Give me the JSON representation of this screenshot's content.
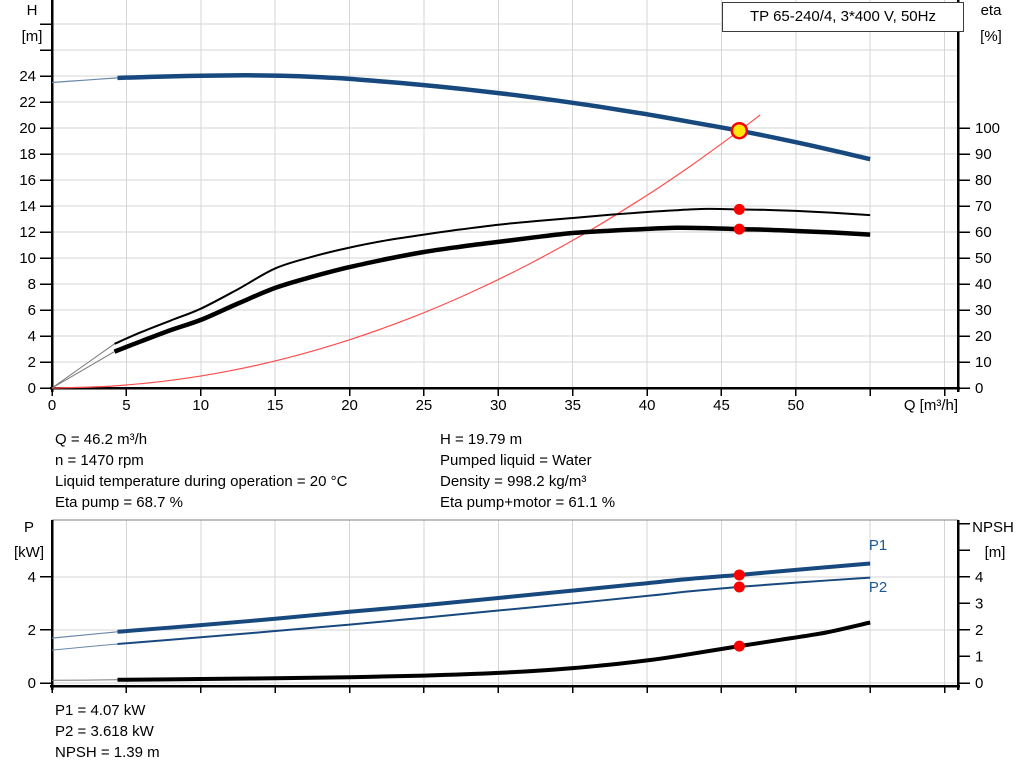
{
  "title_box": "TP 65-240/4, 3*400 V, 50Hz",
  "colors": {
    "curve_blue": "#17497E",
    "leadin_blue": "#6A87AB",
    "curve_black": "#000000",
    "leadin_gray": "#777777",
    "system_red": "#FF4D4D",
    "marker_red": "#FF0000",
    "duty_yellow": "#FFE80A",
    "grid": "#D5D5D5",
    "axis": "#000000",
    "label_blue": "#1B5899"
  },
  "axis_labels": {
    "h": "H",
    "h_unit": "[m]",
    "eta": "eta",
    "eta_unit": "[%]",
    "q": "Q [m³/h]",
    "p": "P",
    "p_unit": "[kW]",
    "npsh": "NPSH",
    "npsh_unit": "[m]"
  },
  "info_top_left": [
    "Q = 46.2 m³/h",
    "n = 1470 rpm",
    "Liquid temperature during operation = 20 °C",
    "Eta pump = 68.7 %"
  ],
  "info_top_right": [
    "H = 19.79 m",
    "Pumped liquid = Water",
    "Density = 998.2 kg/m³",
    "Eta pump+motor = 61.1 %"
  ],
  "info_bottom": [
    "P1 = 4.07 kW",
    "P2 = 3.618 kW",
    "NPSH = 1.39 m"
  ],
  "chart_data": [
    {
      "type": "line",
      "title": "TP 65-240/4, 3*400 V, 50Hz",
      "x": {
        "label": "Q [m³/h]",
        "ticks": [
          0,
          5,
          10,
          15,
          20,
          25,
          30,
          35,
          40,
          45,
          50
        ],
        "unlabeled_ticks": [
          55,
          60
        ],
        "range": [
          0,
          60.9
        ],
        "grid": true
      },
      "y_left": {
        "label": "H [m]",
        "ticks": [
          0,
          2,
          4,
          6,
          8,
          10,
          12,
          14,
          16,
          18,
          20,
          22,
          24
        ],
        "unlabeled_ticks": [
          26,
          28
        ],
        "range": [
          0,
          29.8
        ]
      },
      "y_right": {
        "label": "eta [%]",
        "ticks": [
          0,
          10,
          20,
          30,
          40,
          50,
          60,
          70,
          80,
          90,
          100
        ],
        "unlabeled_ticks": [],
        "range": [
          0,
          149
        ]
      },
      "series": [
        {
          "name": "head-curve-leadin",
          "axis": "left",
          "color": "#6A87AB",
          "width": 1.2,
          "points": [
            [
              0,
              23.5
            ],
            [
              2.2,
              23.68
            ],
            [
              4.4,
              23.85
            ]
          ]
        },
        {
          "name": "head-curve",
          "axis": "left",
          "color": "#17497E",
          "width": 4.5,
          "points": [
            [
              4.4,
              23.85
            ],
            [
              7,
              23.95
            ],
            [
              10,
              24.02
            ],
            [
              13,
              24.05
            ],
            [
              16,
              24.0
            ],
            [
              19,
              23.85
            ],
            [
              22,
              23.6
            ],
            [
              25,
              23.3
            ],
            [
              28,
              22.95
            ],
            [
              31,
              22.55
            ],
            [
              34,
              22.1
            ],
            [
              37,
              21.6
            ],
            [
              40,
              21.05
            ],
            [
              43,
              20.45
            ],
            [
              46.2,
              19.79
            ],
            [
              49,
              19.15
            ],
            [
              52,
              18.4
            ],
            [
              55,
              17.6
            ]
          ]
        },
        {
          "name": "system-curve",
          "axis": "left",
          "color": "#FF4D4D",
          "width": 1.2,
          "points": [
            [
              0,
              0
            ],
            [
              4,
              0.15
            ],
            [
              8,
              0.59
            ],
            [
              12,
              1.33
            ],
            [
              16,
              2.37
            ],
            [
              20,
              3.71
            ],
            [
              24,
              5.34
            ],
            [
              28,
              7.27
            ],
            [
              32,
              9.49
            ],
            [
              36,
              12.01
            ],
            [
              40,
              14.83
            ],
            [
              43,
              17.14
            ],
            [
              46.2,
              19.79
            ],
            [
              47.6,
              21.0
            ]
          ]
        },
        {
          "name": "eta-pump-curve-leadin",
          "axis": "right",
          "color": "#777777",
          "width": 1,
          "points": [
            [
              0,
              0
            ],
            [
              4.2,
              17
            ]
          ]
        },
        {
          "name": "eta-pump-curve",
          "axis": "right",
          "color": "#000000",
          "width": 2,
          "points": [
            [
              4.2,
              17
            ],
            [
              6,
              21.5
            ],
            [
              8,
              26
            ],
            [
              10,
              30.5
            ],
            [
              12.5,
              38
            ],
            [
              15,
              46
            ],
            [
              17.5,
              50.5
            ],
            [
              20,
              54
            ],
            [
              22.5,
              56.8
            ],
            [
              25,
              59
            ],
            [
              27.5,
              61
            ],
            [
              30,
              62.8
            ],
            [
              32.5,
              64.2
            ],
            [
              35,
              65.4
            ],
            [
              37.5,
              66.6
            ],
            [
              40,
              67.7
            ],
            [
              42,
              68.4
            ],
            [
              44,
              68.9
            ],
            [
              46.2,
              68.7
            ],
            [
              48,
              68.5
            ],
            [
              50,
              68.1
            ],
            [
              52.5,
              67.4
            ],
            [
              55,
              66.5
            ]
          ]
        },
        {
          "name": "eta-pump-motor-curve-leadin",
          "axis": "right",
          "color": "#777777",
          "width": 1,
          "points": [
            [
              0,
              0
            ],
            [
              4.2,
              14
            ]
          ]
        },
        {
          "name": "eta-pump-motor-curve",
          "axis": "right",
          "color": "#000000",
          "width": 4.5,
          "points": [
            [
              4.2,
              14
            ],
            [
              6,
              18
            ],
            [
              8,
              22.3
            ],
            [
              10,
              26.2
            ],
            [
              12.5,
              32.5
            ],
            [
              15,
              38.5
            ],
            [
              17.5,
              42.8
            ],
            [
              20,
              46.5
            ],
            [
              22.5,
              49.6
            ],
            [
              25,
              52.3
            ],
            [
              27.5,
              54.4
            ],
            [
              30,
              56.2
            ],
            [
              32.5,
              58
            ],
            [
              35,
              59.6
            ],
            [
              37.5,
              60.5
            ],
            [
              40,
              61.2
            ],
            [
              42,
              61.6
            ],
            [
              44,
              61.5
            ],
            [
              46.2,
              61.1
            ],
            [
              48,
              60.9
            ],
            [
              50,
              60.4
            ],
            [
              52.5,
              59.8
            ],
            [
              55,
              59
            ]
          ]
        }
      ],
      "markers": [
        {
          "name": "duty-point-marker",
          "axis": "left",
          "x": 46.2,
          "y": 19.79,
          "r": 7.5,
          "fill": "#FFE80A",
          "stroke": "#FF0000",
          "stroke_width": 2.5
        },
        {
          "name": "eta-pump-point",
          "axis": "right",
          "x": 46.2,
          "y": 68.7,
          "r": 5.5,
          "fill": "#FF0000"
        },
        {
          "name": "eta-pump-motor-point",
          "axis": "right",
          "x": 46.2,
          "y": 61.1,
          "r": 5.5,
          "fill": "#FF0000"
        }
      ]
    },
    {
      "type": "line",
      "x": {
        "label": "",
        "ticks": [],
        "unlabeled_ticks": [
          0,
          5,
          10,
          15,
          20,
          25,
          30,
          35,
          40,
          45,
          50,
          55,
          60
        ],
        "range": [
          0,
          60.9
        ],
        "grid": true
      },
      "y_left": {
        "label": "P [kW]",
        "ticks": [
          0,
          2,
          4
        ],
        "unlabeled_ticks": [],
        "range": [
          0,
          6.2
        ]
      },
      "y_right": {
        "label": "NPSH [m]",
        "ticks": [
          0,
          1,
          2,
          3,
          4
        ],
        "unlabeled_ticks": [
          5,
          6
        ],
        "range": [
          0,
          6.2
        ]
      },
      "legend": {
        "p1": "P1",
        "p2": "P2"
      },
      "series": [
        {
          "name": "p1-curve-leadin",
          "axis": "left",
          "color": "#6A87AB",
          "width": 1.2,
          "points": [
            [
              0,
              1.69
            ],
            [
              4.4,
              1.93
            ]
          ]
        },
        {
          "name": "p1-curve",
          "axis": "left",
          "color": "#17497E",
          "width": 4,
          "points": [
            [
              4.4,
              1.93
            ],
            [
              10,
              2.18
            ],
            [
              15,
              2.42
            ],
            [
              20,
              2.68
            ],
            [
              25,
              2.93
            ],
            [
              30,
              3.2
            ],
            [
              35,
              3.48
            ],
            [
              40,
              3.76
            ],
            [
              43,
              3.93
            ],
            [
              46.2,
              4.07
            ],
            [
              50,
              4.26
            ],
            [
              55,
              4.5
            ]
          ]
        },
        {
          "name": "p2-curve-leadin",
          "axis": "left",
          "color": "#6A87AB",
          "width": 1,
          "points": [
            [
              0,
              1.24
            ],
            [
              4.4,
              1.47
            ]
          ]
        },
        {
          "name": "p2-curve",
          "axis": "left",
          "color": "#17497E",
          "width": 2,
          "points": [
            [
              4.4,
              1.47
            ],
            [
              10,
              1.72
            ],
            [
              15,
              1.96
            ],
            [
              20,
              2.2
            ],
            [
              25,
              2.46
            ],
            [
              30,
              2.73
            ],
            [
              35,
              3.0
            ],
            [
              40,
              3.28
            ],
            [
              43,
              3.46
            ],
            [
              46.2,
              3.618
            ],
            [
              50,
              3.78
            ],
            [
              55,
              3.97
            ]
          ]
        },
        {
          "name": "npsh-curve-leadin",
          "axis": "left",
          "color": "#777777",
          "width": 1,
          "points": [
            [
              0,
              0.1
            ],
            [
              4.4,
              0.12
            ]
          ]
        },
        {
          "name": "npsh-curve",
          "axis": "left",
          "color": "#000000",
          "width": 4,
          "points": [
            [
              4.4,
              0.12
            ],
            [
              10,
              0.15
            ],
            [
              15,
              0.18
            ],
            [
              20,
              0.22
            ],
            [
              25,
              0.28
            ],
            [
              30,
              0.38
            ],
            [
              35,
              0.56
            ],
            [
              40,
              0.85
            ],
            [
              43,
              1.1
            ],
            [
              46.2,
              1.39
            ],
            [
              49,
              1.63
            ],
            [
              52,
              1.9
            ],
            [
              55,
              2.28
            ]
          ]
        }
      ],
      "markers": [
        {
          "name": "p1-point",
          "axis": "left",
          "x": 46.2,
          "y": 4.07,
          "r": 5.5,
          "fill": "#FF0000"
        },
        {
          "name": "p2-point",
          "axis": "left",
          "x": 46.2,
          "y": 3.618,
          "r": 5.5,
          "fill": "#FF0000"
        },
        {
          "name": "npsh-point",
          "axis": "left",
          "x": 46.2,
          "y": 1.39,
          "r": 5.5,
          "fill": "#FF0000"
        }
      ]
    }
  ]
}
